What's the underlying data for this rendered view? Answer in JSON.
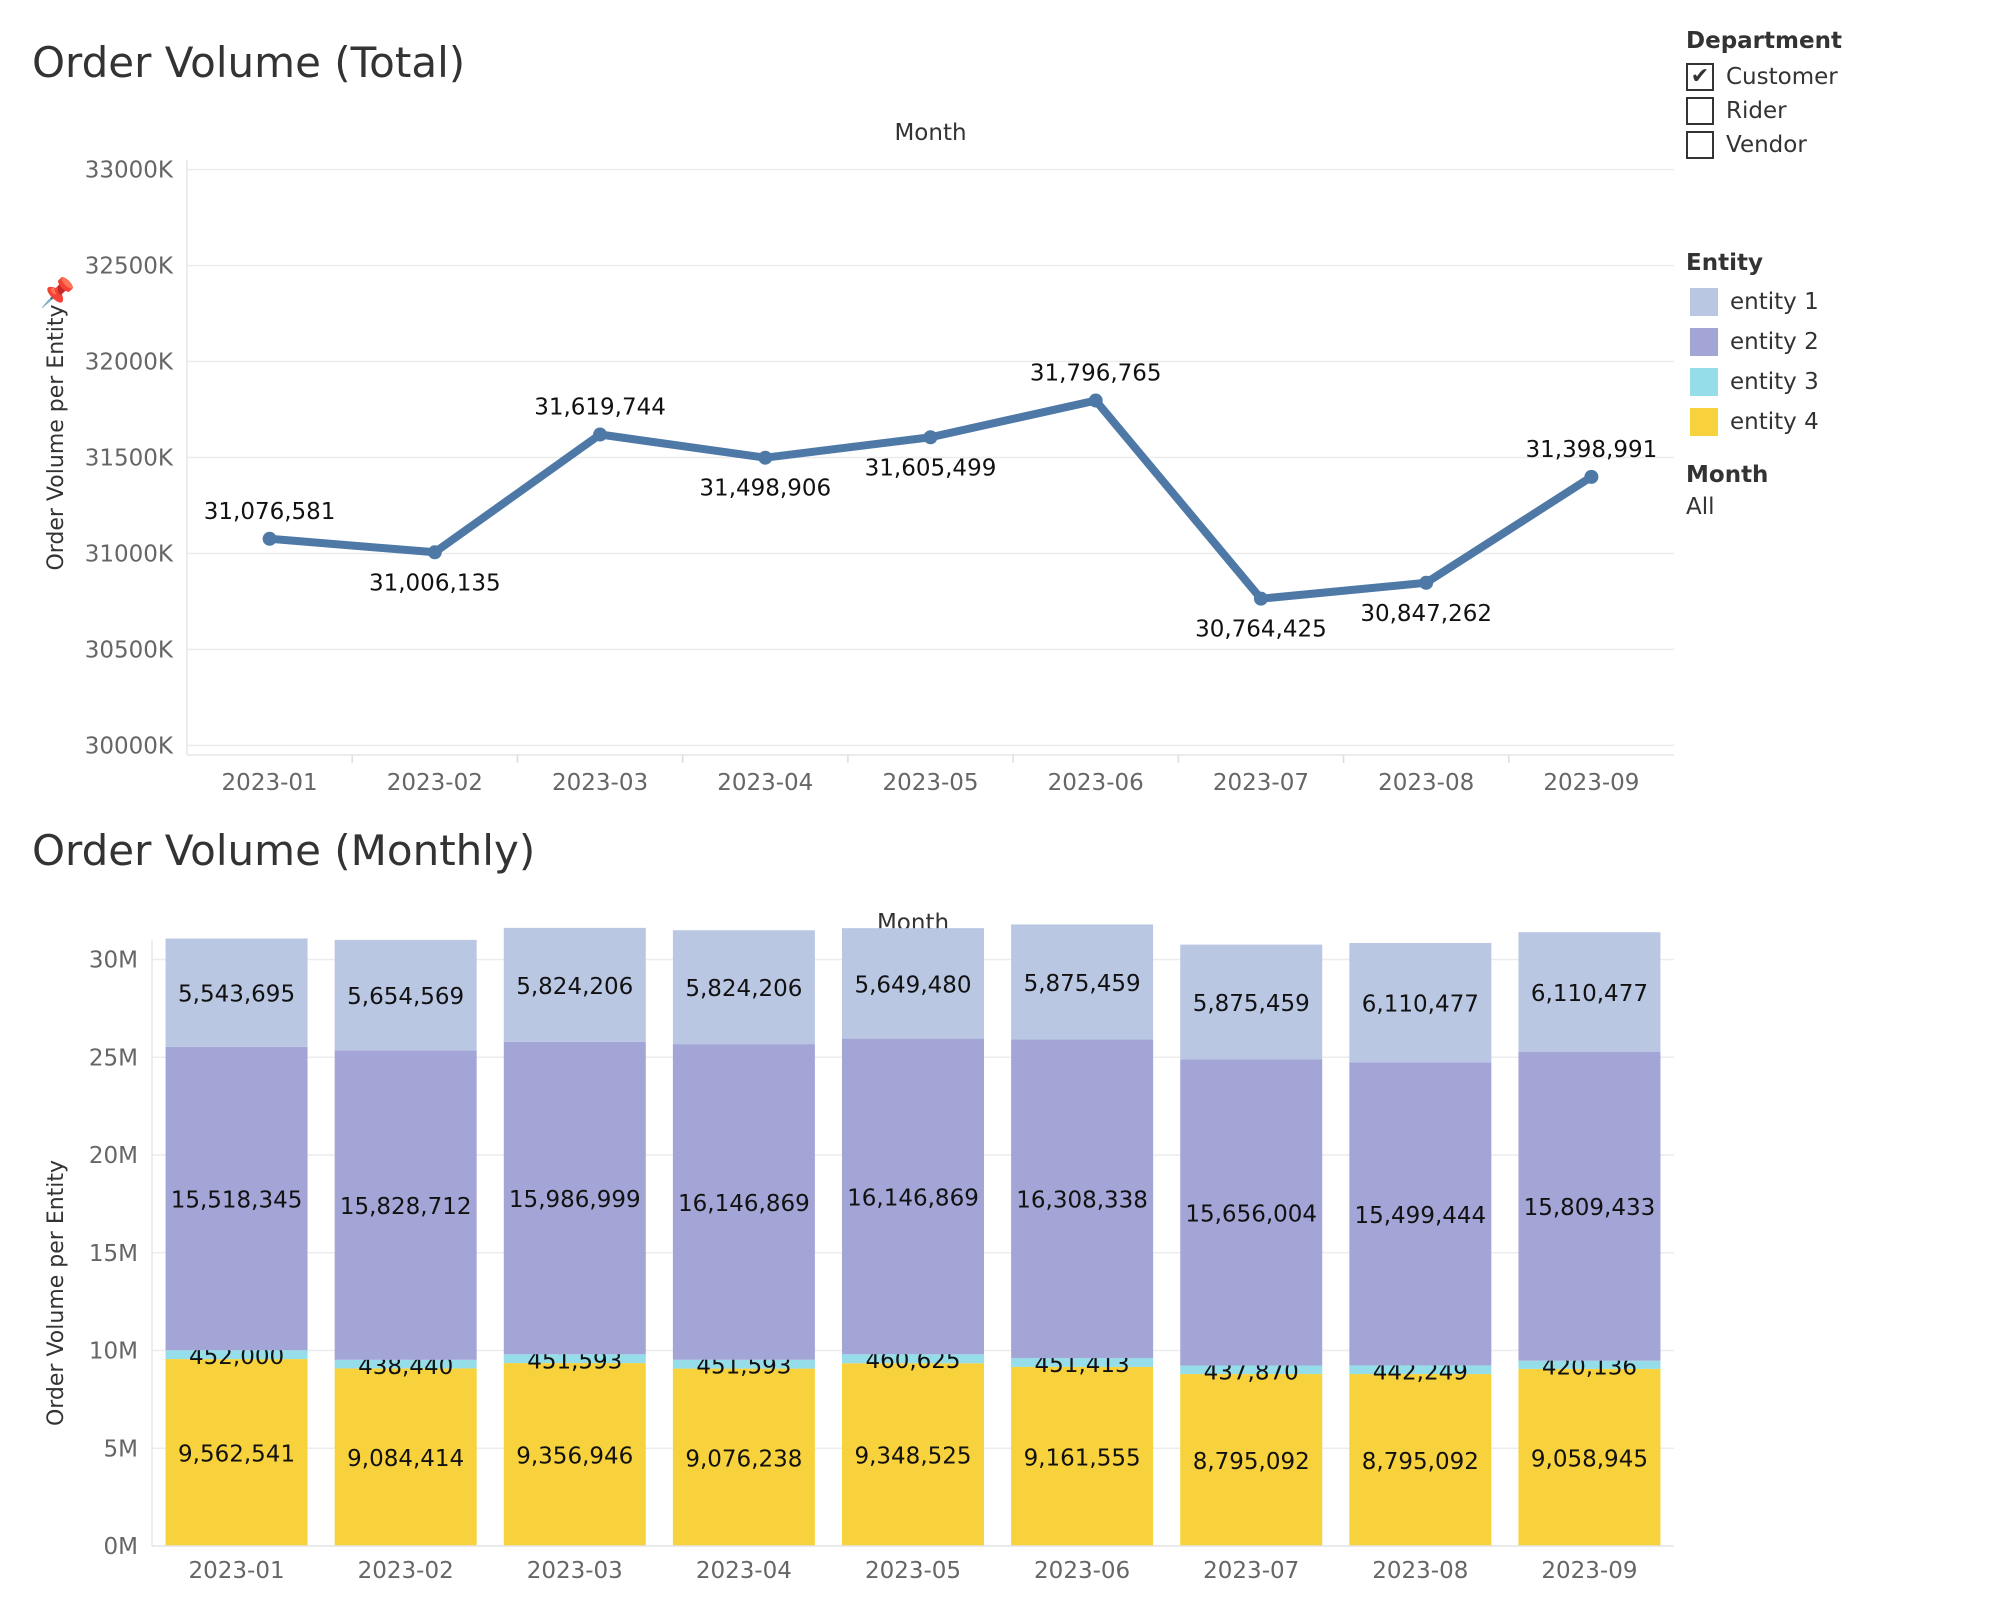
{
  "titles": {
    "total": "Order Volume (Total)",
    "monthly": "Order Volume (Monthly)"
  },
  "filters": {
    "department": {
      "header": "Department",
      "items": [
        {
          "label": "Customer",
          "checked": true,
          "mark": "✔"
        },
        {
          "label": "Rider",
          "checked": false,
          "mark": ""
        },
        {
          "label": "Vendor",
          "checked": false,
          "mark": ""
        }
      ]
    },
    "entity": {
      "header": "Entity",
      "items": [
        {
          "label": "entity 1",
          "color": "#bac7e3"
        },
        {
          "label": "entity 2",
          "color": "#a3a5d6"
        },
        {
          "label": "entity 3",
          "color": "#94dde9"
        },
        {
          "label": "entity 4",
          "color": "#f8d23c"
        }
      ]
    },
    "month": {
      "header": "Month",
      "value": "All"
    }
  },
  "chart_data": [
    {
      "type": "line",
      "title": "Order Volume (Total)",
      "xlabel": "Month",
      "ylabel": "Order Volume per Entity",
      "categories": [
        "2023-01",
        "2023-02",
        "2023-03",
        "2023-04",
        "2023-05",
        "2023-06",
        "2023-07",
        "2023-08",
        "2023-09"
      ],
      "values": [
        31076581,
        31006135,
        31619744,
        31498906,
        31605499,
        31796765,
        30764425,
        30847262,
        31398991
      ],
      "data_labels": [
        "31,076,581",
        "31,006,135",
        "31,619,744",
        "31,498,906",
        "31,605,499",
        "31,796,765",
        "30,764,425",
        "30,847,262",
        "31,398,991"
      ],
      "yticks": [
        30000000,
        30500000,
        31000000,
        31500000,
        32000000,
        32500000,
        33000000
      ],
      "ytick_labels": [
        "30000K",
        "30500K",
        "31000K",
        "31500K",
        "32000K",
        "32500K",
        "33000K"
      ],
      "ylim": [
        29950000,
        33050000
      ],
      "grid": true,
      "color": "#4e79a7"
    },
    {
      "type": "bar",
      "stacked": true,
      "title": "Order Volume (Monthly)",
      "xlabel": "Month",
      "ylabel": "Order Volume per Entity",
      "categories": [
        "2023-01",
        "2023-02",
        "2023-03",
        "2023-04",
        "2023-05",
        "2023-06",
        "2023-07",
        "2023-08",
        "2023-09"
      ],
      "series": [
        {
          "name": "entity 4",
          "color": "#f8d23c",
          "values": [
            9562541,
            9084414,
            9356946,
            9076238,
            9348525,
            9161555,
            8795092,
            8795092,
            9058945
          ],
          "labels": [
            "9,562,541",
            "9,084,414",
            "9,356,946",
            "9,076,238",
            "9,348,525",
            "9,161,555",
            "8,795,092",
            "8,795,092",
            "9,058,945"
          ]
        },
        {
          "name": "entity 3",
          "color": "#94dde9",
          "values": [
            452000,
            438440,
            451593,
            451593,
            460625,
            451413,
            437870,
            442249,
            420136
          ],
          "labels": [
            "452,000",
            "438,440",
            "451,593",
            "451,593",
            "460,625",
            "451,413",
            "437,870",
            "442,249",
            "420,136"
          ]
        },
        {
          "name": "entity 2",
          "color": "#a3a5d6",
          "values": [
            15518345,
            15828712,
            15986999,
            16146869,
            16146869,
            16308338,
            15656004,
            15499444,
            15809433
          ],
          "labels": [
            "15,518,345",
            "15,828,712",
            "15,986,999",
            "16,146,869",
            "16,146,869",
            "16,308,338",
            "15,656,004",
            "15,499,444",
            "15,809,433"
          ]
        },
        {
          "name": "entity 1",
          "color": "#bac7e3",
          "values": [
            5543695,
            5654569,
            5824206,
            5824206,
            5649480,
            5875459,
            5875459,
            6110477,
            6110477
          ],
          "labels": [
            "5,543,695",
            "5,654,569",
            "5,824,206",
            "5,824,206",
            "5,649,480",
            "5,875,459",
            "5,875,459",
            "6,110,477",
            "6,110,477"
          ]
        }
      ],
      "yticks": [
        0,
        5000000,
        10000000,
        15000000,
        20000000,
        25000000,
        30000000
      ],
      "ytick_labels": [
        "0M",
        "5M",
        "10M",
        "15M",
        "20M",
        "25M",
        "30M"
      ],
      "ylim": [
        0,
        31000000
      ],
      "grid": true
    }
  ]
}
